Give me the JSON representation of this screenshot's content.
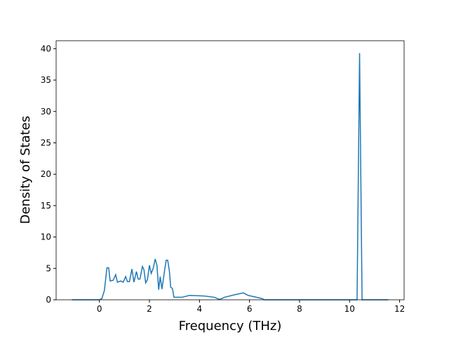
{
  "chart_data": {
    "type": "line",
    "x_label": "Frequency (THz)",
    "y_label": "Density of States",
    "series": [
      {
        "color": "#1f77b4",
        "x": [
          -1.1,
          0,
          0.1,
          0.2,
          0.3,
          0.37,
          0.43,
          0.55,
          0.65,
          0.72,
          0.85,
          0.95,
          1.05,
          1.12,
          1.2,
          1.3,
          1.38,
          1.48,
          1.55,
          1.62,
          1.72,
          1.78,
          1.85,
          1.92,
          2.0,
          2.07,
          2.15,
          2.23,
          2.3,
          2.37,
          2.43,
          2.5,
          2.6,
          2.67,
          2.73,
          2.8,
          2.85,
          2.92,
          2.98,
          3.3,
          3.6,
          4.2,
          4.6,
          4.8,
          5.0,
          5.4,
          5.75,
          5.95,
          6.5,
          6.6,
          10.3,
          10.4,
          10.5,
          11.55
        ],
        "values": [
          0,
          0,
          0.2,
          1.5,
          5.1,
          5.1,
          3.0,
          3.1,
          4.0,
          2.8,
          3.0,
          2.8,
          3.7,
          2.9,
          2.9,
          4.9,
          2.8,
          4.5,
          3.3,
          3.3,
          5.3,
          4.8,
          2.7,
          3.2,
          5.5,
          4.2,
          5.0,
          6.5,
          5.5,
          1.6,
          3.7,
          1.7,
          4.5,
          6.3,
          6.3,
          4.5,
          2.0,
          1.8,
          0.4,
          0.4,
          0.7,
          0.6,
          0.4,
          0.05,
          0.4,
          0.8,
          1.1,
          0.7,
          0.2,
          0,
          0,
          39.3,
          0,
          0
        ]
      }
    ],
    "xlim": [
      -1.73,
      12.18
    ],
    "xticks": [
      0,
      2,
      4,
      6,
      8,
      10,
      12
    ],
    "ylim": [
      0,
      41.27
    ],
    "yticks": [
      0,
      5,
      10,
      15,
      20,
      25,
      30,
      35,
      40
    ]
  }
}
